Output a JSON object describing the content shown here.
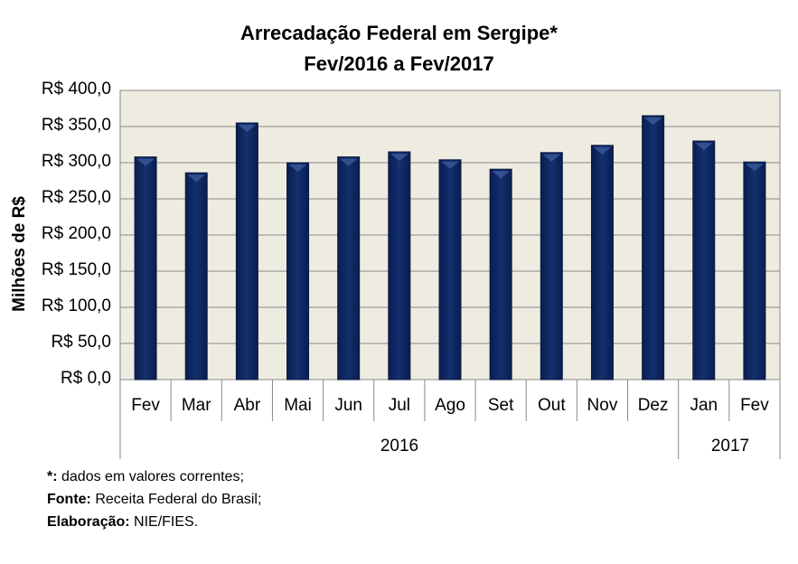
{
  "chart_data": {
    "type": "bar",
    "title": "Arrecadação Federal em Sergipe*",
    "subtitle": "Fev/2016 a Fev/2017",
    "ylabel": "Milhões de R$",
    "xlabel": "",
    "ylim": [
      0,
      400
    ],
    "yticks": [
      "R$ 0,0",
      "R$ 50,0",
      "R$ 100,0",
      "R$ 150,0",
      "R$ 200,0",
      "R$ 250,0",
      "R$ 300,0",
      "R$ 350,0",
      "R$ 400,0"
    ],
    "categories": [
      "Fev",
      "Mar",
      "Abr",
      "Mai",
      "Jun",
      "Jul",
      "Ago",
      "Set",
      "Out",
      "Nov",
      "Dez",
      "Jan",
      "Fev"
    ],
    "years": [
      "2016",
      "2017"
    ],
    "values": [
      308,
      286,
      355,
      300,
      308,
      315,
      304,
      291,
      314,
      324,
      365,
      330,
      301
    ],
    "grid": true,
    "colors": {
      "bar": "#0f2560",
      "plot_bg": "#eeece1"
    }
  },
  "notes": {
    "n1_label": "*:",
    "n1_text": " dados em valores correntes;",
    "n2_label": "Fonte:",
    "n2_text": " Receita Federal do Brasil;",
    "n3_label": "Elaboração:",
    "n3_text": " NIE/FIES."
  }
}
